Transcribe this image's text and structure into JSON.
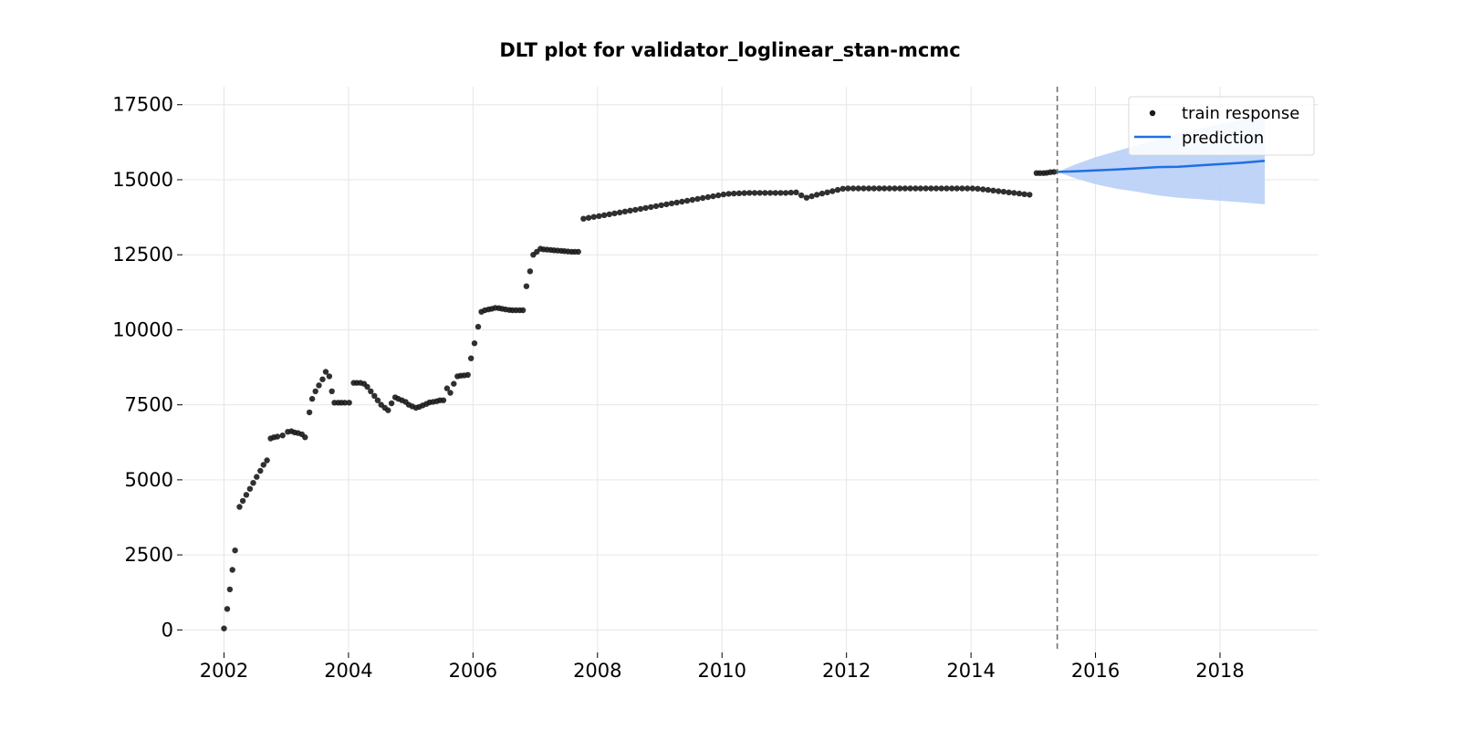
{
  "chart_data": {
    "type": "scatter",
    "title": "DLT plot for validator_loglinear_stan-mcmc",
    "xlabel": "",
    "ylabel": "",
    "x_axis": {
      "type": "date",
      "range": [
        "2001-05-01",
        "2019-08-01"
      ],
      "ticks": [
        "2002",
        "2004",
        "2006",
        "2008",
        "2010",
        "2012",
        "2014",
        "2016",
        "2018"
      ]
    },
    "y_axis": {
      "range": [
        -750,
        18100
      ],
      "ticks": [
        0,
        2500,
        5000,
        7500,
        10000,
        12500,
        15000,
        17500
      ],
      "tick_labels": [
        "0",
        "2500",
        "5000",
        "7500",
        "10000",
        "12500",
        "15000",
        "17500"
      ]
    },
    "grid": true,
    "legend": {
      "placement": "top-right",
      "entries": [
        {
          "label": "train response",
          "kind": "marker"
        },
        {
          "label": "prediction",
          "kind": "line"
        }
      ]
    },
    "split_date": "2015-05-20",
    "colors": {
      "train": "#1a1a1a",
      "prediction": "#1f6fe5",
      "band": "#bcd2f7",
      "split_line": "#707070"
    },
    "series": [
      {
        "name": "train response",
        "type": "scatter",
        "points": [
          [
            "2002-01-01",
            50
          ],
          [
            "2002-01-20",
            700
          ],
          [
            "2002-02-05",
            1350
          ],
          [
            "2002-02-20",
            2000
          ],
          [
            "2002-03-05",
            2650
          ],
          [
            "2002-04-01",
            4100
          ],
          [
            "2002-04-20",
            4300
          ],
          [
            "2002-05-10",
            4500
          ],
          [
            "2002-06-01",
            4700
          ],
          [
            "2002-06-20",
            4900
          ],
          [
            "2002-07-10",
            5100
          ],
          [
            "2002-08-01",
            5300
          ],
          [
            "2002-08-20",
            5500
          ],
          [
            "2002-09-10",
            5650
          ],
          [
            "2002-10-01",
            6380
          ],
          [
            "2002-10-20",
            6420
          ],
          [
            "2002-11-10",
            6440
          ],
          [
            "2002-12-10",
            6480
          ],
          [
            "2003-01-10",
            6600
          ],
          [
            "2003-02-01",
            6620
          ],
          [
            "2003-02-20",
            6580
          ],
          [
            "2003-03-10",
            6560
          ],
          [
            "2003-04-01",
            6520
          ],
          [
            "2003-04-20",
            6420
          ],
          [
            "2003-05-15",
            7250
          ],
          [
            "2003-06-01",
            7700
          ],
          [
            "2003-06-20",
            7950
          ],
          [
            "2003-07-10",
            8150
          ],
          [
            "2003-08-01",
            8350
          ],
          [
            "2003-08-20",
            8600
          ],
          [
            "2003-09-10",
            8450
          ],
          [
            "2003-09-25",
            7950
          ],
          [
            "2003-10-10",
            7570
          ],
          [
            "2003-11-01",
            7570
          ],
          [
            "2003-11-20",
            7570
          ],
          [
            "2003-12-10",
            7570
          ],
          [
            "2004-01-05",
            7570
          ],
          [
            "2004-02-01",
            8230
          ],
          [
            "2004-02-20",
            8230
          ],
          [
            "2004-03-10",
            8230
          ],
          [
            "2004-04-01",
            8200
          ],
          [
            "2004-04-20",
            8100
          ],
          [
            "2004-05-10",
            7950
          ],
          [
            "2004-06-01",
            7800
          ],
          [
            "2004-06-20",
            7650
          ],
          [
            "2004-07-10",
            7500
          ],
          [
            "2004-08-01",
            7400
          ],
          [
            "2004-08-20",
            7320
          ],
          [
            "2004-09-10",
            7550
          ],
          [
            "2004-10-01",
            7750
          ],
          [
            "2004-10-20",
            7700
          ],
          [
            "2004-11-10",
            7650
          ],
          [
            "2004-12-01",
            7600
          ],
          [
            "2004-12-20",
            7500
          ],
          [
            "2005-01-10",
            7450
          ],
          [
            "2005-02-01",
            7400
          ],
          [
            "2005-02-20",
            7430
          ],
          [
            "2005-03-10",
            7480
          ],
          [
            "2005-04-01",
            7530
          ],
          [
            "2005-04-20",
            7580
          ],
          [
            "2005-05-10",
            7600
          ],
          [
            "2005-06-01",
            7620
          ],
          [
            "2005-06-20",
            7650
          ],
          [
            "2005-07-10",
            7650
          ],
          [
            "2005-08-01",
            8050
          ],
          [
            "2005-08-20",
            7900
          ],
          [
            "2005-09-10",
            8200
          ],
          [
            "2005-10-01",
            8450
          ],
          [
            "2005-10-20",
            8470
          ],
          [
            "2005-11-10",
            8480
          ],
          [
            "2005-12-01",
            8500
          ],
          [
            "2005-12-20",
            9050
          ],
          [
            "2006-01-10",
            9550
          ],
          [
            "2006-02-01",
            10100
          ],
          [
            "2006-02-20",
            10600
          ],
          [
            "2006-03-10",
            10650
          ],
          [
            "2006-04-01",
            10680
          ],
          [
            "2006-04-20",
            10700
          ],
          [
            "2006-05-10",
            10730
          ],
          [
            "2006-06-01",
            10720
          ],
          [
            "2006-06-20",
            10700
          ],
          [
            "2006-07-10",
            10680
          ],
          [
            "2006-08-01",
            10660
          ],
          [
            "2006-08-20",
            10650
          ],
          [
            "2006-09-10",
            10650
          ],
          [
            "2006-10-01",
            10650
          ],
          [
            "2006-10-20",
            10650
          ],
          [
            "2006-11-10",
            11450
          ],
          [
            "2006-12-01",
            11950
          ],
          [
            "2006-12-20",
            12500
          ],
          [
            "2007-01-10",
            12600
          ],
          [
            "2007-02-01",
            12700
          ],
          [
            "2007-02-20",
            12680
          ],
          [
            "2007-03-10",
            12670
          ],
          [
            "2007-04-01",
            12660
          ],
          [
            "2007-04-20",
            12650
          ],
          [
            "2007-05-10",
            12640
          ],
          [
            "2007-06-01",
            12630
          ],
          [
            "2007-06-20",
            12620
          ],
          [
            "2007-07-10",
            12610
          ],
          [
            "2007-08-01",
            12600
          ],
          [
            "2007-08-20",
            12600
          ],
          [
            "2007-09-10",
            12600
          ],
          [
            "2007-10-10",
            13700
          ],
          [
            "2007-11-10",
            13730
          ],
          [
            "2007-12-10",
            13760
          ],
          [
            "2008-01-10",
            13790
          ],
          [
            "2008-02-10",
            13820
          ],
          [
            "2008-03-10",
            13850
          ],
          [
            "2008-04-10",
            13880
          ],
          [
            "2008-05-10",
            13910
          ],
          [
            "2008-06-10",
            13940
          ],
          [
            "2008-07-10",
            13970
          ],
          [
            "2008-08-10",
            14000
          ],
          [
            "2008-09-10",
            14030
          ],
          [
            "2008-10-10",
            14060
          ],
          [
            "2008-11-10",
            14090
          ],
          [
            "2008-12-10",
            14120
          ],
          [
            "2009-01-10",
            14150
          ],
          [
            "2009-02-10",
            14180
          ],
          [
            "2009-03-10",
            14210
          ],
          [
            "2009-04-10",
            14240
          ],
          [
            "2009-05-10",
            14270
          ],
          [
            "2009-06-10",
            14300
          ],
          [
            "2009-07-10",
            14330
          ],
          [
            "2009-08-10",
            14360
          ],
          [
            "2009-09-10",
            14390
          ],
          [
            "2009-10-10",
            14420
          ],
          [
            "2009-11-10",
            14450
          ],
          [
            "2009-12-10",
            14480
          ],
          [
            "2010-01-10",
            14510
          ],
          [
            "2010-02-10",
            14530
          ],
          [
            "2010-03-10",
            14540
          ],
          [
            "2010-04-10",
            14550
          ],
          [
            "2010-05-10",
            14555
          ],
          [
            "2010-06-10",
            14560
          ],
          [
            "2010-07-10",
            14560
          ],
          [
            "2010-08-10",
            14560
          ],
          [
            "2010-09-10",
            14560
          ],
          [
            "2010-10-10",
            14560
          ],
          [
            "2010-11-10",
            14560
          ],
          [
            "2010-12-10",
            14560
          ],
          [
            "2011-01-10",
            14560
          ],
          [
            "2011-02-10",
            14570
          ],
          [
            "2011-03-10",
            14580
          ],
          [
            "2011-04-10",
            14480
          ],
          [
            "2011-05-10",
            14400
          ],
          [
            "2011-06-10",
            14450
          ],
          [
            "2011-07-10",
            14500
          ],
          [
            "2011-08-10",
            14540
          ],
          [
            "2011-09-10",
            14580
          ],
          [
            "2011-10-10",
            14620
          ],
          [
            "2011-11-10",
            14660
          ],
          [
            "2011-12-10",
            14700
          ],
          [
            "2012-01-10",
            14710
          ],
          [
            "2012-02-10",
            14710
          ],
          [
            "2012-03-10",
            14710
          ],
          [
            "2012-04-10",
            14710
          ],
          [
            "2012-05-10",
            14710
          ],
          [
            "2012-06-10",
            14710
          ],
          [
            "2012-07-10",
            14710
          ],
          [
            "2012-08-10",
            14710
          ],
          [
            "2012-09-10",
            14710
          ],
          [
            "2012-10-10",
            14710
          ],
          [
            "2012-11-10",
            14710
          ],
          [
            "2012-12-10",
            14710
          ],
          [
            "2013-01-10",
            14710
          ],
          [
            "2013-02-10",
            14710
          ],
          [
            "2013-03-10",
            14710
          ],
          [
            "2013-04-10",
            14710
          ],
          [
            "2013-05-10",
            14710
          ],
          [
            "2013-06-10",
            14710
          ],
          [
            "2013-07-10",
            14710
          ],
          [
            "2013-08-10",
            14710
          ],
          [
            "2013-09-10",
            14710
          ],
          [
            "2013-10-10",
            14710
          ],
          [
            "2013-11-10",
            14710
          ],
          [
            "2013-12-10",
            14710
          ],
          [
            "2014-01-10",
            14710
          ],
          [
            "2014-02-10",
            14700
          ],
          [
            "2014-03-10",
            14680
          ],
          [
            "2014-04-10",
            14660
          ],
          [
            "2014-05-10",
            14640
          ],
          [
            "2014-06-10",
            14620
          ],
          [
            "2014-07-10",
            14600
          ],
          [
            "2014-08-10",
            14580
          ],
          [
            "2014-09-10",
            14560
          ],
          [
            "2014-10-10",
            14540
          ],
          [
            "2014-11-10",
            14520
          ],
          [
            "2014-12-10",
            14500
          ],
          [
            "2015-01-20",
            15220
          ],
          [
            "2015-02-10",
            15220
          ],
          [
            "2015-03-01",
            15220
          ],
          [
            "2015-03-20",
            15230
          ],
          [
            "2015-04-10",
            15250
          ],
          [
            "2015-05-01",
            15260
          ]
        ]
      },
      {
        "name": "prediction",
        "type": "line",
        "x": [
          "2015-05-20",
          "2015-09-01",
          "2016-01-01",
          "2016-05-01",
          "2016-09-01",
          "2017-01-01",
          "2017-05-01",
          "2017-09-01",
          "2018-01-01",
          "2018-05-01",
          "2018-09-20"
        ],
        "values": [
          15260,
          15280,
          15310,
          15340,
          15380,
          15420,
          15430,
          15480,
          15520,
          15560,
          15630
        ],
        "lower": [
          15260,
          15050,
          14850,
          14700,
          14600,
          14480,
          14400,
          14350,
          14300,
          14250,
          14180
        ],
        "upper": [
          15260,
          15500,
          15750,
          15950,
          16150,
          16350,
          16550,
          16700,
          16850,
          17000,
          17150
        ]
      }
    ]
  }
}
